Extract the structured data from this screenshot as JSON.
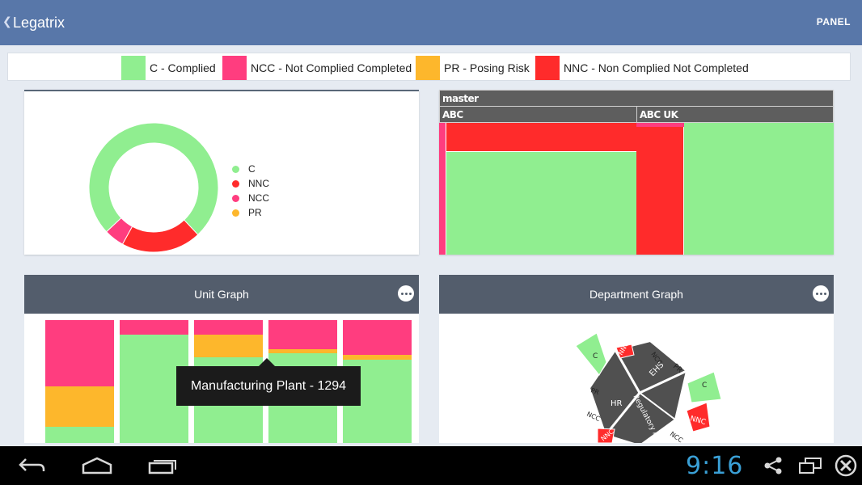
{
  "app": {
    "title": "Legatrix",
    "panel_label": "PANEL"
  },
  "legend": [
    {
      "label": "C - Complied",
      "color": "#90ee90"
    },
    {
      "label": "NCC - Not Complied Completed",
      "color": "#ff3d7f"
    },
    {
      "label": "PR - Posing Risk",
      "color": "#fdb72c"
    },
    {
      "label": "NNC - Non Complied Not Completed",
      "color": "#ff2b2b"
    }
  ],
  "donut": {
    "legend": [
      {
        "label": "C",
        "color": "#90ee90"
      },
      {
        "label": "NNC",
        "color": "#ff2b2b"
      },
      {
        "label": "NCC",
        "color": "#ff3d7f"
      },
      {
        "label": "PR",
        "color": "#fdb72c"
      }
    ]
  },
  "treemap": {
    "root_label": "master",
    "group_labels": [
      "ABC",
      "ABC UK"
    ]
  },
  "unit_graph": {
    "title": "Unit Graph",
    "tooltip": "Manufacturing Plant - 1294"
  },
  "department_graph": {
    "title": "Department Graph",
    "inner_labels": [
      "HR",
      "EHS",
      "Regulatory Affa"
    ],
    "outer_labels": [
      "C",
      "NNC",
      "NCC",
      "PR",
      "C",
      "NNC",
      "NCC",
      "PR",
      "NCC",
      "NNC"
    ]
  },
  "statusbar": {
    "clock": "9:16"
  },
  "chart_data": [
    {
      "type": "pie",
      "labels": [
        "C",
        "NNC",
        "NCC",
        "PR"
      ],
      "values": [
        75,
        20,
        5,
        0
      ],
      "colors": [
        "#90ee90",
        "#ff2b2b",
        "#ff3d7f",
        "#fdb72c"
      ],
      "legend_position": "right"
    },
    {
      "type": "bar",
      "stacked": true,
      "series": [
        {
          "name": "C",
          "values": [
            13,
            88,
            70,
            73,
            68
          ]
        },
        {
          "name": "PR",
          "values": [
            33,
            0,
            18,
            3,
            4
          ]
        },
        {
          "name": "NCC",
          "values": [
            54,
            12,
            12,
            24,
            28
          ]
        }
      ],
      "colors": {
        "C": "#90ee90",
        "PR": "#fdb72c",
        "NCC": "#ff3d7f"
      }
    }
  ]
}
